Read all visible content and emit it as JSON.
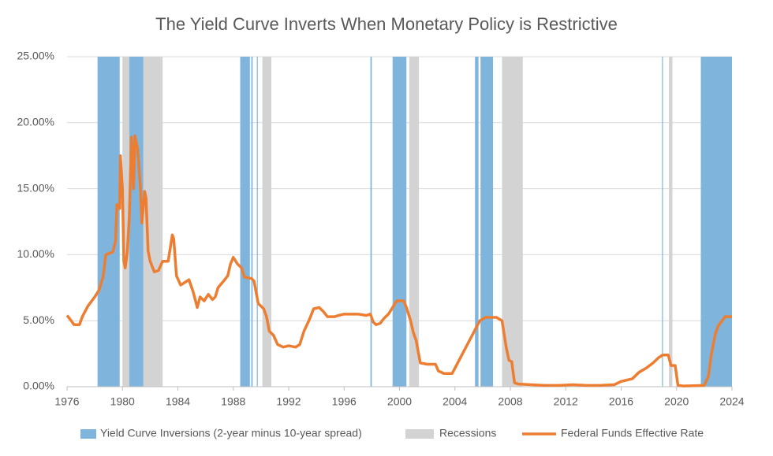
{
  "chart_data": {
    "type": "line",
    "title": "The Yield Curve Inverts When Monetary Policy is Restrictive",
    "xlim": [
      1976,
      2024
    ],
    "xticks": [
      1976,
      1980,
      1984,
      1988,
      1992,
      1996,
      2000,
      2004,
      2008,
      2012,
      2016,
      2020,
      2024
    ],
    "ylim": [
      0,
      25
    ],
    "yticks": [
      {
        "value": 0,
        "label": "0.00%"
      },
      {
        "value": 5,
        "label": "5.00%"
      },
      {
        "value": 10,
        "label": "10.00%"
      },
      {
        "value": 15,
        "label": "15.00%"
      },
      {
        "value": 20,
        "label": "20.00%"
      },
      {
        "value": 25,
        "label": "25.00%"
      }
    ],
    "grid": true,
    "legend": "bottom",
    "bands": [
      {
        "name": "Yield Curve Inversions (2-year minus 10-year spread)",
        "color": "#7fb5dc",
        "ranges": [
          [
            1978.2,
            1979.8
          ],
          [
            1980.3,
            1982.0
          ],
          [
            1988.5,
            1989.2
          ],
          [
            1989.3,
            1989.4
          ],
          [
            1989.7,
            1989.75
          ],
          [
            1997.9,
            1998.0
          ],
          [
            1999.5,
            2000.5
          ],
          [
            2005.45,
            2005.7
          ],
          [
            2005.85,
            2006.75
          ],
          [
            2018.95,
            2019.0
          ],
          [
            2021.75,
            2024
          ]
        ]
      },
      {
        "name": "Recessions",
        "color": "#d3d3d3",
        "ranges": [
          [
            1980.0,
            1980.5
          ],
          [
            1981.5,
            1982.9
          ],
          [
            1990.1,
            1990.75
          ],
          [
            2000.7,
            2001.4
          ],
          [
            2007.4,
            2008.9
          ],
          [
            2019.45,
            2019.7
          ]
        ]
      }
    ],
    "x": [
      1976,
      1976.3,
      1976.5,
      1976.9,
      1977.1,
      1977.5,
      1978,
      1978.3,
      1978.6,
      1978.8,
      1979.3,
      1979.5,
      1979.6,
      1979.8,
      1979.85,
      1980.0,
      1980.1,
      1980.2,
      1980.35,
      1980.5,
      1980.65,
      1980.8,
      1980.9,
      1981.1,
      1981.3,
      1981.4,
      1981.6,
      1981.7,
      1981.85,
      1982.0,
      1982.3,
      1982.6,
      1982.9,
      1983.3,
      1983.6,
      1983.7,
      1983.9,
      1984.2,
      1984.5,
      1984.8,
      1985.1,
      1985.4,
      1985.6,
      1985.9,
      1986.2,
      1986.5,
      1986.7,
      1986.9,
      1987.3,
      1987.6,
      1987.8,
      1988.0,
      1988.3,
      1988.6,
      1988.8,
      1989.3,
      1989.5,
      1989.8,
      1990.2,
      1990.4,
      1990.6,
      1990.9,
      1991.2,
      1991.6,
      1992.0,
      1992.5,
      1992.8,
      1993.1,
      1993.5,
      1993.8,
      1994.2,
      1994.5,
      1994.8,
      1995.3,
      1995.6,
      1996.0,
      1996.5,
      1997.0,
      1997.6,
      1997.9,
      1998.1,
      1998.3,
      1998.6,
      1998.9,
      1999.2,
      1999.5,
      1999.8,
      2000.3,
      2000.5,
      2000.8,
      2001.0,
      2001.2,
      2001.5,
      2002.0,
      2002.6,
      2002.8,
      2003.2,
      2003.8,
      2004.3,
      2004.8,
      2005.3,
      2005.8,
      2006.2,
      2007.0,
      2007.4,
      2007.7,
      2007.9,
      2008.1,
      2008.3,
      2008.6,
      2009.5,
      2010.5,
      2011.5,
      2012.5,
      2013.5,
      2014.5,
      2015.5,
      2016.0,
      2016.8,
      2017.3,
      2017.8,
      2018.3,
      2018.7,
      2019.0,
      2019.4,
      2019.6,
      2019.9,
      2020.1,
      2020.5,
      2021.5,
      2022.0,
      2022.3,
      2022.5,
      2022.8,
      2023.0,
      2023.5,
      2024.0
    ],
    "series": [
      {
        "name": "Federal Funds Effective Rate",
        "color": "#ed7d31",
        "values": [
          5.4,
          5.0,
          4.7,
          4.7,
          5.3,
          6.1,
          6.8,
          7.3,
          8.3,
          10.0,
          10.2,
          11.0,
          13.8,
          13.5,
          17.5,
          15.0,
          9.5,
          9.0,
          10.2,
          13.0,
          18.9,
          15.0,
          19.0,
          18.0,
          15.0,
          12.4,
          14.8,
          14.3,
          10.3,
          9.5,
          8.7,
          8.8,
          9.5,
          9.5,
          11.5,
          11.2,
          8.4,
          7.7,
          7.9,
          8.1,
          7.2,
          6.0,
          6.8,
          6.5,
          7.0,
          6.6,
          6.8,
          7.5,
          8.0,
          8.4,
          9.3,
          9.8,
          9.3,
          9.0,
          8.3,
          8.2,
          8.0,
          6.3,
          5.9,
          5.3,
          4.2,
          3.9,
          3.2,
          3.0,
          3.1,
          3.0,
          3.2,
          4.2,
          5.1,
          5.9,
          6.0,
          5.7,
          5.3,
          5.3,
          5.4,
          5.5,
          5.5,
          5.5,
          5.4,
          5.5,
          4.9,
          4.7,
          4.8,
          5.2,
          5.5,
          6.0,
          6.5,
          6.5,
          6.0,
          5.0,
          4.1,
          3.5,
          1.8,
          1.7,
          1.7,
          1.2,
          1.0,
          1.0,
          2.0,
          3.0,
          4.0,
          5.0,
          5.25,
          5.25,
          5.0,
          3.0,
          2.0,
          1.9,
          0.3,
          0.2,
          0.15,
          0.1,
          0.1,
          0.15,
          0.1,
          0.1,
          0.15,
          0.4,
          0.6,
          1.1,
          1.4,
          1.8,
          2.2,
          2.4,
          2.4,
          1.6,
          1.6,
          0.1,
          0.05,
          0.08,
          0.1,
          0.8,
          2.4,
          4.0,
          4.6,
          5.3,
          5.3
        ]
      }
    ]
  }
}
